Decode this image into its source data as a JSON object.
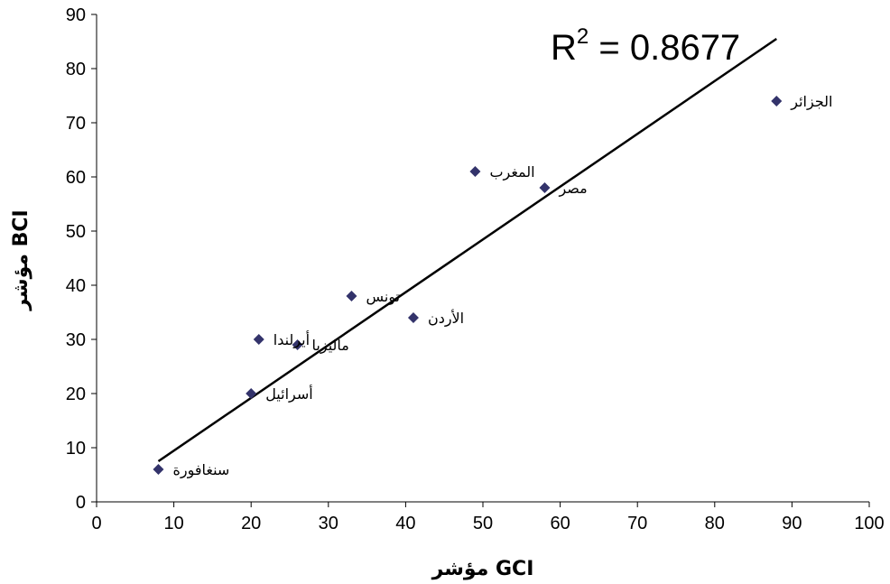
{
  "chart_data": {
    "type": "scatter",
    "xlabel": "مؤشر GCI",
    "ylabel": "مؤشر BCI",
    "xlim": [
      0,
      100
    ],
    "ylim": [
      0,
      90
    ],
    "xticks": [
      "0",
      "10",
      "20",
      "30",
      "40",
      "50",
      "60",
      "70",
      "80",
      "90",
      "100"
    ],
    "yticks": [
      "0",
      "10",
      "20",
      "30",
      "40",
      "50",
      "60",
      "70",
      "80",
      "90"
    ],
    "grid": false,
    "marker_color": "#33336b",
    "points": [
      {
        "label": "سنغافورة",
        "x": 8,
        "y": 6
      },
      {
        "label": "أسرائيل",
        "x": 20,
        "y": 20
      },
      {
        "label": "أيرلندا",
        "x": 21,
        "y": 30
      },
      {
        "label": "ماليزيا",
        "x": 26,
        "y": 29
      },
      {
        "label": "تونس",
        "x": 33,
        "y": 38
      },
      {
        "label": "الأردن",
        "x": 41,
        "y": 34
      },
      {
        "label": "المغرب",
        "x": 49,
        "y": 61
      },
      {
        "label": "مصر",
        "x": 58,
        "y": 58
      },
      {
        "label": "الجزائر",
        "x": 88,
        "y": 74
      }
    ],
    "trendline": {
      "type": "linear",
      "x": [
        8,
        88
      ],
      "y": [
        7.5,
        85.5
      ],
      "r2_label": "R",
      "r2_sup": "2",
      "r2_value": " = 0.8677"
    }
  }
}
